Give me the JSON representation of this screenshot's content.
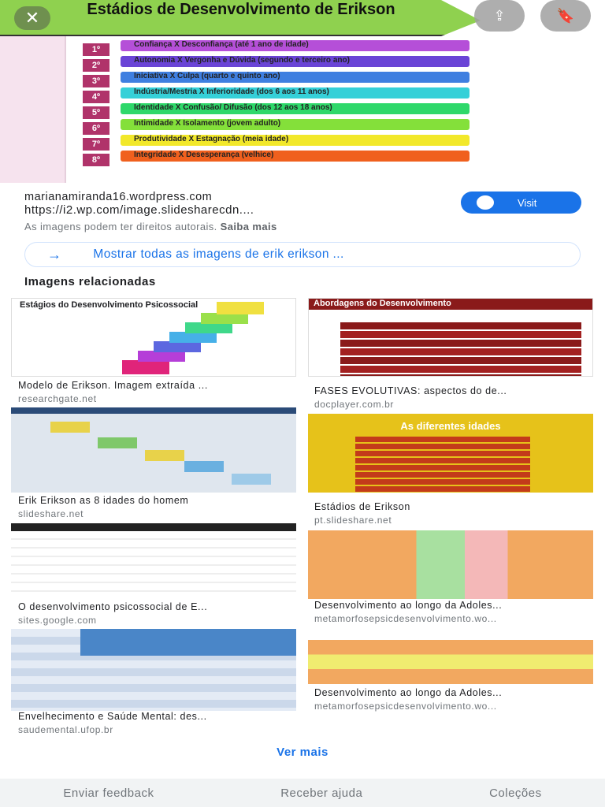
{
  "hero": {
    "title": "Estádios de Desenvolvimento de Erikson",
    "stages": [
      {
        "num": "1º",
        "text": "Confiança  X  Desconfiança  (até 1 ano de idade)",
        "color": "#b54fd8"
      },
      {
        "num": "2º",
        "text": "Autonomia  X  Vergonha e Dúvida   (segundo e terceiro ano)",
        "color": "#6a44d6"
      },
      {
        "num": "3º",
        "text": "Iniciativa  X  Culpa (quarto e quinto ano)",
        "color": "#3f7fe0"
      },
      {
        "num": "4º",
        "text": "Indústria/Mestria  X  Inferioridade (dos 6 aos 11 anos)",
        "color": "#35d0d8"
      },
      {
        "num": "5º",
        "text": "Identidade  X  Confusão/ Difusão (dos 12 aos 18 anos)",
        "color": "#2ed86a"
      },
      {
        "num": "6º",
        "text": "Intimidade  X  Isolamento (jovem adulto)",
        "color": "#84e03a"
      },
      {
        "num": "7º",
        "text": "Produtividade  X  Estagnação  (meia idade)",
        "color": "#f2e82a"
      },
      {
        "num": "8º",
        "text": "Integridade  X  Desesperança (velhice)",
        "color": "#f0601e"
      }
    ],
    "close_icon": "close-icon",
    "share_icon": "share-icon",
    "bookmark_icon": "bookmark-icon"
  },
  "source": {
    "domain": "marianamiranda16.wordpress.com",
    "url": "https://i2.wp.com/image.slidesharecdn....",
    "copyright": "As imagens podem ter direitos autorais.",
    "learn_more": "Saiba mais",
    "visit_label": "Visit"
  },
  "show_all": "Mostrar todas as imagens de erik erikson ...",
  "related_title": "Imagens relacionadas",
  "related": [
    {
      "caption": "Modelo de Erikson. Imagem extraída ...",
      "domain": "researchgate.net"
    },
    {
      "caption": "FASES EVOLUTIVAS: aspectos do de...",
      "domain": "docplayer.com.br"
    },
    {
      "caption": "Erik Erikson as 8 idades do homem",
      "domain": "slideshare.net"
    },
    {
      "caption": "Estádios de Erikson",
      "domain": "pt.slideshare.net"
    },
    {
      "caption": "O desenvolvimento psicossocial de E...",
      "domain": "sites.google.com"
    },
    {
      "caption": "Desenvolvimento ao longo da Adoles...",
      "domain": "metamorfosepsicdesenvolvimento.wo..."
    },
    {
      "caption": "Envelhecimento e Saúde Mental: des...",
      "domain": "saudemental.ufop.br"
    },
    {
      "caption": "Desenvolvimento ao longo da Adoles...",
      "domain": "metamorfosepsicdesenvolvimento.wo..."
    }
  ],
  "thumb_text": {
    "t1": "Estágios do Desenvolvimento Psicossocial",
    "t2": "Abordagens do Desenvolvimento",
    "t4": "As diferentes idades"
  },
  "see_more": "Ver mais",
  "footer": [
    "Enviar feedback",
    "Receber ajuda",
    "Coleções"
  ]
}
